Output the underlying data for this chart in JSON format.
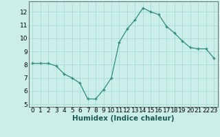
{
  "x": [
    0,
    1,
    2,
    3,
    4,
    5,
    6,
    7,
    8,
    9,
    10,
    11,
    12,
    13,
    14,
    15,
    16,
    17,
    18,
    19,
    20,
    21,
    22,
    23
  ],
  "y": [
    8.1,
    8.1,
    8.1,
    7.9,
    7.3,
    7.0,
    6.6,
    5.4,
    5.4,
    6.1,
    7.0,
    9.7,
    10.7,
    11.4,
    12.3,
    12.0,
    11.8,
    10.9,
    10.4,
    9.8,
    9.3,
    9.2,
    9.2,
    8.5
  ],
  "color": "#2e8b7a",
  "bg_color": "#cceee8",
  "grid_color": "#aaddda",
  "xlabel": "Humidex (Indice chaleur)",
  "xlim": [
    -0.5,
    23.5
  ],
  "ylim": [
    4.8,
    12.8
  ],
  "yticks": [
    5,
    6,
    7,
    8,
    9,
    10,
    11,
    12
  ],
  "xticks": [
    0,
    1,
    2,
    3,
    4,
    5,
    6,
    7,
    8,
    9,
    10,
    11,
    12,
    13,
    14,
    15,
    16,
    17,
    18,
    19,
    20,
    21,
    22,
    23
  ],
  "label_fontsize": 7.5,
  "tick_fontsize": 6.5
}
